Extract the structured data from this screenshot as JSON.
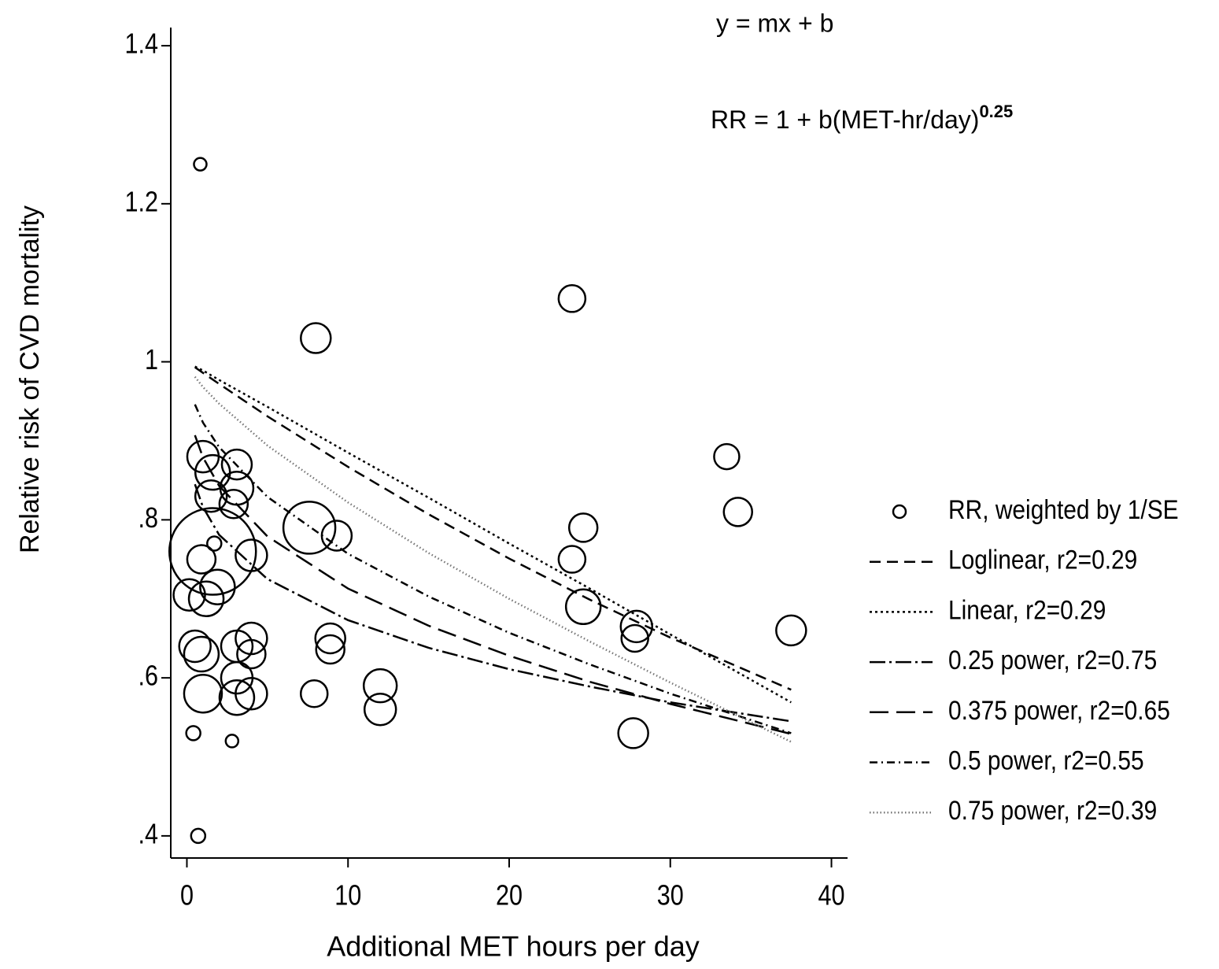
{
  "chart_data": {
    "type": "scatter",
    "annotations": [
      {
        "text": "y = mx + b"
      },
      {
        "text": "RR = 1 + b(MET-hr/day)",
        "superscript": "0.25"
      }
    ],
    "xlabel": "Additional MET hours per day",
    "ylabel": "Relative risk of CVD mortality",
    "xlim": [
      -1,
      41
    ],
    "ylim": [
      0.372,
      1.423
    ],
    "xticks": [
      0,
      10,
      20,
      30,
      40
    ],
    "yticks": [
      {
        "value": 0.4,
        "label": ".4"
      },
      {
        "value": 0.6,
        "label": ".6"
      },
      {
        "value": 0.8,
        "label": ".8"
      },
      1,
      1.2,
      1.4
    ],
    "legend": "right",
    "points": {
      "name": "RR, weighted by 1/SE",
      "color": "#000000",
      "x": [
        0.83,
        0.4,
        2.8,
        0.7,
        1.6,
        23.9,
        8.0,
        33.5,
        34.2,
        24.6,
        23.9,
        24.6,
        27.9,
        27.8,
        37.5,
        27.7,
        7.6,
        9.3,
        8.9,
        8.9,
        7.9,
        12.0,
        12.0,
        1.0,
        1.6,
        3.1,
        3.1,
        1.5,
        2.9,
        1.7,
        4.0,
        0.9,
        1.9,
        0.15,
        1.2,
        0.5,
        0.9,
        1.0,
        3.1,
        3.1,
        4.0,
        4.0,
        3.1,
        4.0
      ],
      "values": [
        1.25,
        0.53,
        0.52,
        0.4,
        0.76,
        1.08,
        1.03,
        0.88,
        0.81,
        0.79,
        0.75,
        0.69,
        0.665,
        0.65,
        0.66,
        0.53,
        0.79,
        0.78,
        0.65,
        0.636,
        0.58,
        0.59,
        0.56,
        0.88,
        0.86,
        0.87,
        0.84,
        0.83,
        0.82,
        0.77,
        0.755,
        0.75,
        0.715,
        0.705,
        0.7,
        0.64,
        0.63,
        0.58,
        0.64,
        0.6,
        0.65,
        0.63,
        0.575,
        0.58
      ],
      "sizes": [
        8,
        9,
        8,
        9,
        55,
        17,
        19,
        16,
        18,
        18,
        17,
        22,
        20,
        17,
        19,
        19,
        33,
        19,
        19,
        18,
        17,
        21,
        20,
        20,
        22,
        19,
        21,
        20,
        18,
        9,
        20,
        18,
        22,
        20,
        22,
        20,
        22,
        24,
        20,
        20,
        20,
        18,
        22,
        20
      ]
    },
    "x": [
      0.5,
      1,
      2,
      5,
      10,
      15,
      20,
      25,
      30,
      37.5
    ],
    "series": [
      {
        "name": "Loglinear, r2=0.29",
        "color": "#000000",
        "dash": "14,8",
        "values": [
          0.993,
          0.986,
          0.972,
          0.931,
          0.867,
          0.807,
          0.751,
          0.699,
          0.651,
          0.585
        ]
      },
      {
        "name": "Linear, r2=0.29",
        "color": "#000000",
        "dash": "3,4",
        "values": [
          0.994,
          0.989,
          0.977,
          0.943,
          0.885,
          0.828,
          0.77,
          0.713,
          0.655,
          0.569
        ]
      },
      {
        "name": "0.25 power, r2=0.75",
        "color": "#000000",
        "dash": "20,5,3,5",
        "values": [
          0.845,
          0.816,
          0.781,
          0.725,
          0.673,
          0.638,
          0.611,
          0.589,
          0.569,
          0.545
        ]
      },
      {
        "name": "0.375 power, r2=0.65",
        "color": "#000000",
        "dash": "24,10",
        "values": [
          0.907,
          0.879,
          0.843,
          0.779,
          0.713,
          0.666,
          0.628,
          0.595,
          0.567,
          0.529
        ]
      },
      {
        "name": "0.5 power, r2=0.55",
        "color": "#000000",
        "dash": "10,5,2,5",
        "values": [
          0.946,
          0.923,
          0.892,
          0.829,
          0.757,
          0.703,
          0.657,
          0.617,
          0.58,
          0.53
        ]
      },
      {
        "name": "0.75 power, r2=0.39",
        "color": "#777777",
        "dash": "1.5,3",
        "values": [
          0.981,
          0.968,
          0.947,
          0.894,
          0.822,
          0.758,
          0.7,
          0.646,
          0.594,
          0.519
        ]
      }
    ]
  }
}
